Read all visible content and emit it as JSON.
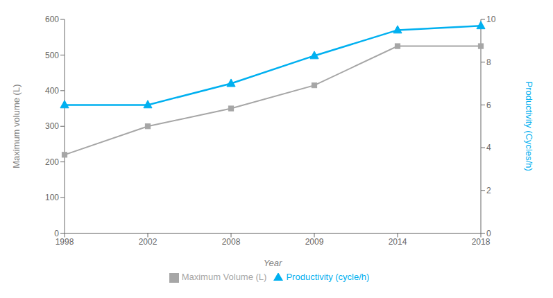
{
  "chart_data": {
    "type": "line",
    "xlabel": "Year",
    "ylabel": "Maximum volume (L)",
    "y2label": "Productivity (Cycles/h)",
    "categories": [
      "1998",
      "2002",
      "2008",
      "2009",
      "2014",
      "2018"
    ],
    "series": [
      {
        "name": "Maximum Volume (L)",
        "color": "#a6a6a6",
        "values": [
          220,
          300,
          350,
          415,
          525,
          525
        ],
        "marker": "square"
      },
      {
        "name": "Productivity (cycle/h)",
        "color": "#00b0f0",
        "values": [
          6,
          6,
          7,
          8.3,
          9.5,
          9.7
        ],
        "marker": "triangle",
        "axis": "y2"
      }
    ],
    "ylim": [
      0,
      600
    ],
    "yticks": [
      0,
      100,
      200,
      300,
      400,
      500,
      600
    ],
    "y2lim": [
      0,
      10
    ],
    "y2ticks": [
      0,
      2,
      4,
      6,
      8,
      10
    ],
    "grid": false,
    "legend": "bottom"
  }
}
